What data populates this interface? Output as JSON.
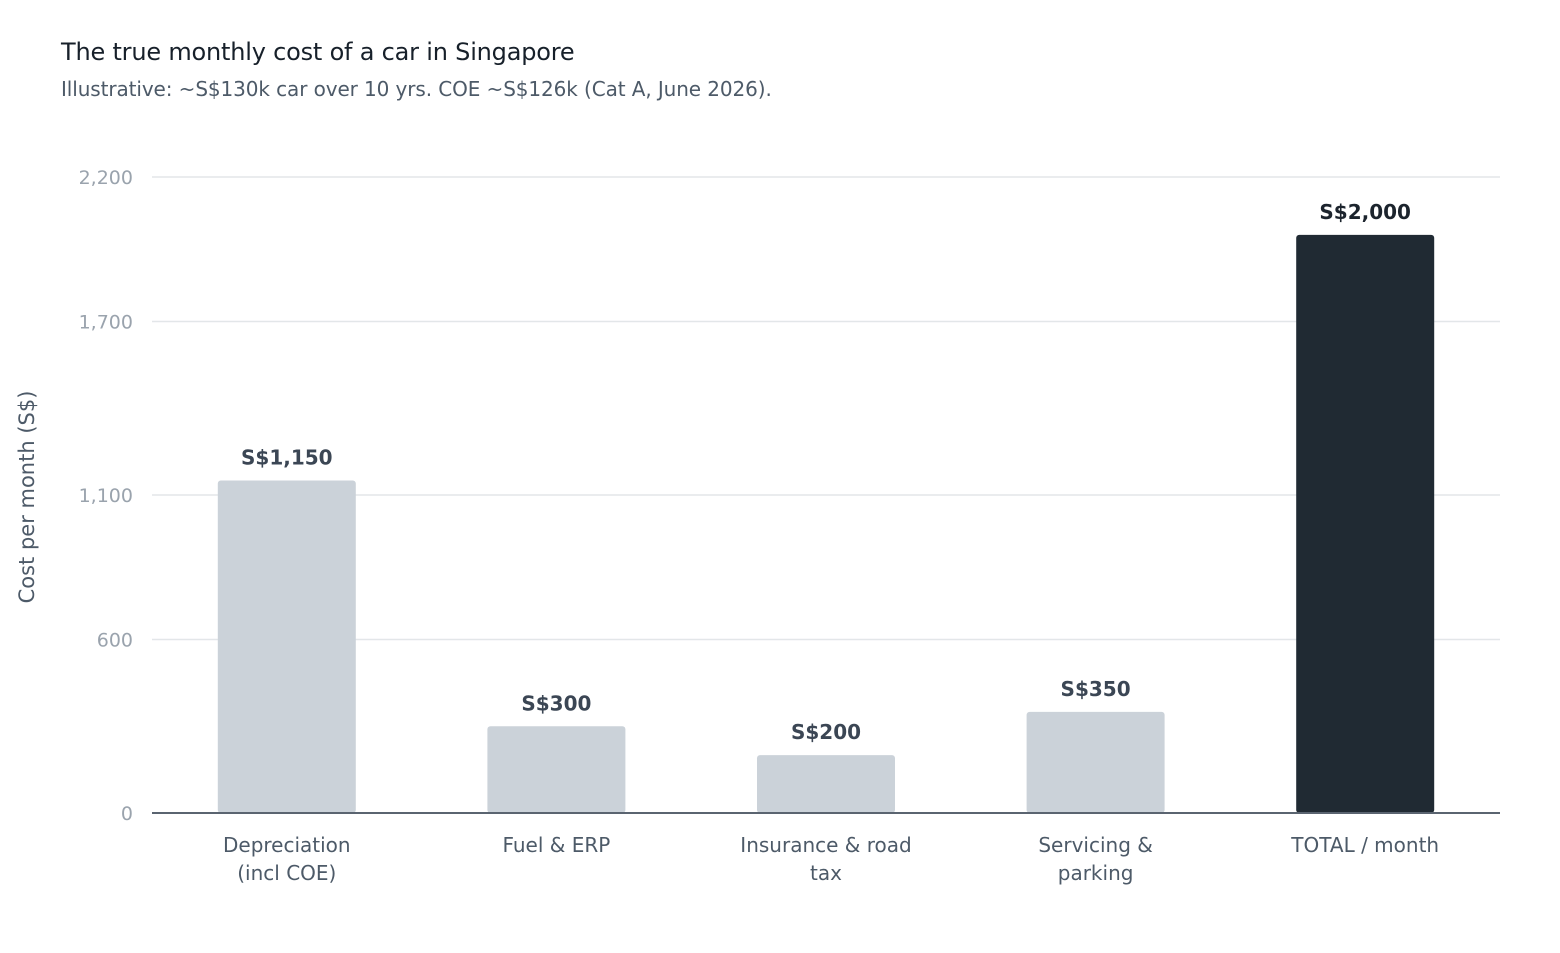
{
  "chart_data": {
    "type": "bar",
    "title": "The true monthly cost of a car in Singapore",
    "subtitle": "Illustrative: ~S$130k car over 10 yrs. COE ~S$126k (Cat A, June 2026).",
    "xlabel": "",
    "ylabel": "Cost per month (S$)",
    "ylim": [
      0,
      2200
    ],
    "yticks": [
      0,
      600,
      1100,
      1700,
      2200
    ],
    "ytick_labels": [
      "0",
      "600",
      "1,100",
      "1,700",
      "2,200"
    ],
    "grid": true,
    "categories": [
      [
        "Depreciation",
        "(incl COE)"
      ],
      [
        "Fuel & ERP"
      ],
      [
        "Insurance & road",
        "tax"
      ],
      [
        "Servicing &",
        "parking"
      ],
      [
        "TOTAL / month"
      ]
    ],
    "values": [
      1150,
      300,
      200,
      350,
      2000
    ],
    "value_labels": [
      "S$1,150",
      "S$300",
      "S$200",
      "S$350",
      "S$2,000"
    ],
    "highlight_index": 4,
    "colors": {
      "bar": "#cbd2d9",
      "highlight_bar": "#202a33",
      "grid": "#e3e6e9",
      "axis": "#5a6470"
    }
  }
}
